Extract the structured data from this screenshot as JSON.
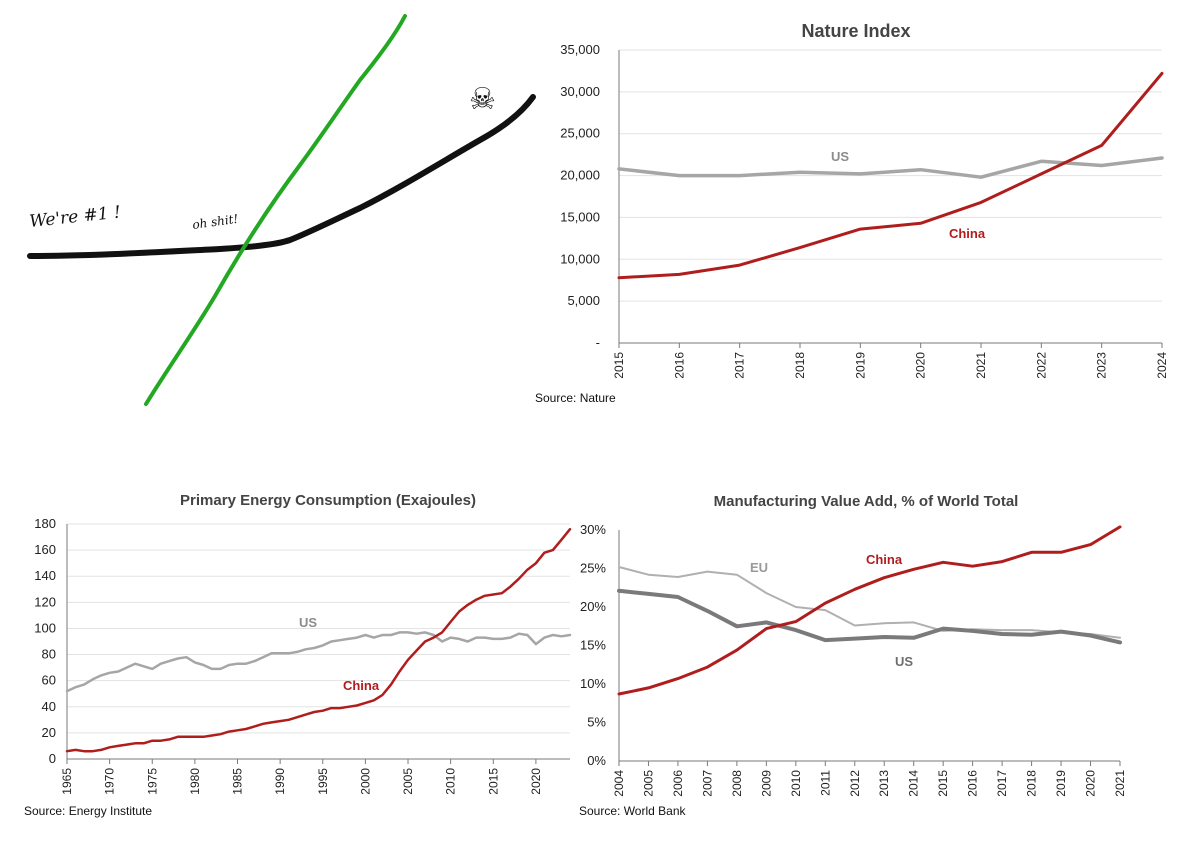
{
  "colors": {
    "china": "#b01d1d",
    "us": "#a6a6a6",
    "us_dark": "#7a7a7a",
    "eu": "#b0b0b0",
    "green": "#22a822",
    "black": "#111111"
  },
  "sketch": {
    "label_start": "We're #1 !",
    "label_cross": "oh shit!",
    "skull_glyph": "☠",
    "icon": "skull-icon"
  },
  "chart_data": [
    {
      "id": "nature",
      "type": "line",
      "title": "Nature Index",
      "source": "Source: Nature",
      "x": [
        2015,
        2016,
        2017,
        2018,
        2019,
        2020,
        2021,
        2022,
        2023,
        2024
      ],
      "ylim": [
        0,
        35000
      ],
      "yticks": [
        0,
        5000,
        10000,
        15000,
        20000,
        25000,
        30000,
        35000
      ],
      "ytick_labels": [
        "-",
        "5,000",
        "10,000",
        "15,000",
        "20,000",
        "25,000",
        "30,000",
        "35,000"
      ],
      "grid": true,
      "series": [
        {
          "name": "US",
          "color": "#a6a6a6",
          "values": [
            20800,
            20000,
            20000,
            20400,
            20200,
            20700,
            19800,
            21700,
            21200,
            22100
          ]
        },
        {
          "name": "China",
          "color": "#b01d1d",
          "values": [
            7800,
            8200,
            9300,
            11400,
            13600,
            14300,
            16800,
            20200,
            23600,
            32200
          ]
        }
      ]
    },
    {
      "id": "energy",
      "type": "line",
      "title": "Primary Energy Consumption (Exajoules)",
      "source": "Source: Energy Institute",
      "x": [
        1965,
        1966,
        1967,
        1968,
        1969,
        1970,
        1971,
        1972,
        1973,
        1974,
        1975,
        1976,
        1977,
        1978,
        1979,
        1980,
        1981,
        1982,
        1983,
        1984,
        1985,
        1986,
        1987,
        1988,
        1989,
        1990,
        1991,
        1992,
        1993,
        1994,
        1995,
        1996,
        1997,
        1998,
        1999,
        2000,
        2001,
        2002,
        2003,
        2004,
        2005,
        2006,
        2007,
        2008,
        2009,
        2010,
        2011,
        2012,
        2013,
        2014,
        2015,
        2016,
        2017,
        2018,
        2019,
        2020,
        2021,
        2022,
        2023,
        2024
      ],
      "xticks": [
        1965,
        1970,
        1975,
        1980,
        1985,
        1990,
        1995,
        2000,
        2005,
        2010,
        2015,
        2020
      ],
      "ylim": [
        0,
        180
      ],
      "yticks": [
        0,
        20,
        40,
        60,
        80,
        100,
        120,
        140,
        160,
        180
      ],
      "grid": true,
      "series": [
        {
          "name": "US",
          "color": "#a6a6a6",
          "values": [
            52,
            55,
            57,
            61,
            64,
            66,
            67,
            70,
            73,
            71,
            69,
            73,
            75,
            77,
            78,
            74,
            72,
            69,
            69,
            72,
            73,
            73,
            75,
            78,
            81,
            81,
            81,
            82,
            84,
            85,
            87,
            90,
            91,
            92,
            93,
            95,
            93,
            95,
            95,
            97,
            97,
            96,
            97,
            95,
            90,
            93,
            92,
            90,
            93,
            93,
            92,
            92,
            93,
            96,
            95,
            88,
            93,
            95,
            94,
            95
          ]
        },
        {
          "name": "China",
          "color": "#b01d1d",
          "values": [
            6,
            7,
            6,
            6,
            7,
            9,
            10,
            11,
            12,
            12,
            14,
            14,
            15,
            17,
            17,
            17,
            17,
            18,
            19,
            21,
            22,
            23,
            25,
            27,
            28,
            29,
            30,
            32,
            34,
            36,
            37,
            39,
            39,
            40,
            41,
            43,
            45,
            49,
            57,
            67,
            76,
            83,
            90,
            93,
            97,
            105,
            113,
            118,
            122,
            125,
            126,
            127,
            132,
            138,
            145,
            150,
            158,
            160,
            168,
            176
          ]
        }
      ]
    },
    {
      "id": "manufacturing",
      "type": "line",
      "title": "Manufacturing Value Add, % of World Total",
      "source": "Source: World Bank",
      "x": [
        2004,
        2005,
        2006,
        2007,
        2008,
        2009,
        2010,
        2011,
        2012,
        2013,
        2014,
        2015,
        2016,
        2017,
        2018,
        2019,
        2020,
        2021
      ],
      "ylim": [
        0,
        30
      ],
      "yticks": [
        0,
        5,
        10,
        15,
        20,
        25,
        30
      ],
      "ytick_suffix": "%",
      "grid": false,
      "series": [
        {
          "name": "EU",
          "color": "#b0b0b0",
          "values": [
            25.2,
            24.2,
            23.9,
            24.6,
            24.2,
            21.8,
            20.0,
            19.6,
            17.6,
            17.9,
            18.0,
            16.9,
            17.1,
            17.0,
            17.0,
            16.7,
            16.5,
            16.0
          ]
        },
        {
          "name": "US",
          "color": "#7a7a7a",
          "values": [
            22.1,
            21.7,
            21.3,
            19.5,
            17.5,
            18.0,
            17.0,
            15.7,
            15.9,
            16.1,
            16.0,
            17.2,
            16.9,
            16.5,
            16.4,
            16.8,
            16.3,
            15.4
          ]
        },
        {
          "name": "China",
          "color": "#b01d1d",
          "values": [
            8.7,
            9.5,
            10.7,
            12.2,
            14.4,
            17.2,
            18.1,
            20.5,
            22.3,
            23.8,
            24.9,
            25.8,
            25.3,
            25.9,
            27.1,
            27.1,
            28.1,
            30.4
          ]
        }
      ]
    }
  ]
}
